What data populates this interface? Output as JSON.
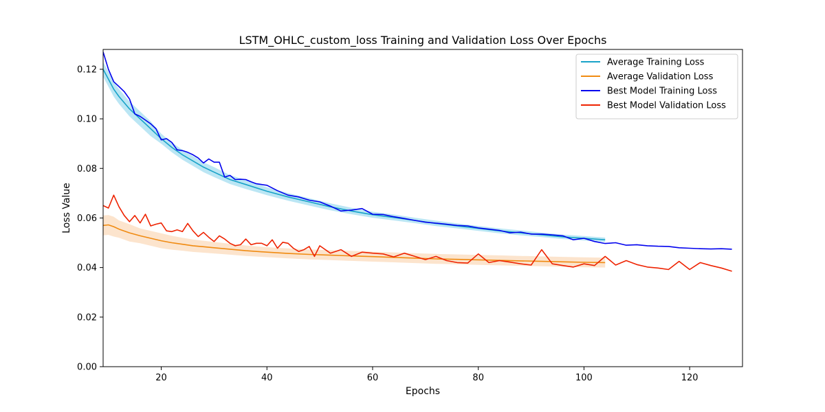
{
  "chart_data": {
    "type": "line",
    "title": "LSTM_OHLC_custom_loss  Training and Validation Loss Over Epochs",
    "xlabel": "Epochs",
    "ylabel": "Loss Value",
    "xlim": [
      9,
      130
    ],
    "ylim": [
      0,
      0.128
    ],
    "xticks": [
      20,
      40,
      60,
      80,
      100,
      120
    ],
    "yticks": [
      0.0,
      0.02,
      0.04,
      0.06,
      0.08,
      0.1,
      0.12
    ],
    "ytick_labels": [
      "0.00",
      "0.02",
      "0.04",
      "0.06",
      "0.08",
      "0.10",
      "0.12"
    ],
    "grid": false,
    "legend_position": "top-right",
    "series": [
      {
        "name": "Average Training Loss",
        "color": "#17a2c8",
        "band_color": "#9edcef",
        "x": [
          9,
          10,
          11,
          12,
          14,
          16,
          18,
          20,
          22,
          24,
          26,
          28,
          30,
          33,
          36,
          40,
          44,
          48,
          52,
          56,
          60,
          64,
          68,
          72,
          76,
          80,
          84,
          88,
          92,
          96,
          100,
          104
        ],
        "values": [
          0.12,
          0.116,
          0.112,
          0.109,
          0.104,
          0.1,
          0.096,
          0.092,
          0.0885,
          0.0855,
          0.083,
          0.0805,
          0.0785,
          0.0755,
          0.0735,
          0.0708,
          0.0685,
          0.0665,
          0.0645,
          0.0628,
          0.0613,
          0.0602,
          0.059,
          0.0578,
          0.0568,
          0.0558,
          0.0548,
          0.054,
          0.0532,
          0.0524,
          0.0518,
          0.0512
        ],
        "band_halfwidth": [
          0.003,
          0.003,
          0.003,
          0.003,
          0.003,
          0.003,
          0.003,
          0.002,
          0.002,
          0.002,
          0.002,
          0.002,
          0.002,
          0.0018,
          0.0018,
          0.0016,
          0.0015,
          0.0015,
          0.0014,
          0.0013,
          0.0012,
          0.0012,
          0.0011,
          0.0011,
          0.001,
          0.001,
          0.001,
          0.001,
          0.0009,
          0.0009,
          0.0009,
          0.0009
        ]
      },
      {
        "name": "Average Validation Loss",
        "color": "#f08a10",
        "band_color": "#fbd9b8",
        "x": [
          9,
          10,
          11,
          12,
          14,
          16,
          18,
          20,
          22,
          24,
          26,
          28,
          30,
          33,
          36,
          40,
          44,
          48,
          52,
          56,
          60,
          64,
          68,
          72,
          76,
          80,
          84,
          88,
          92,
          96,
          100,
          104
        ],
        "values": [
          0.057,
          0.0572,
          0.0565,
          0.0555,
          0.054,
          0.0528,
          0.0518,
          0.0508,
          0.05,
          0.0494,
          0.0488,
          0.0484,
          0.048,
          0.0474,
          0.0468,
          0.0462,
          0.0457,
          0.0453,
          0.045,
          0.0447,
          0.0444,
          0.0441,
          0.0438,
          0.0435,
          0.0433,
          0.0431,
          0.0429,
          0.0427,
          0.0425,
          0.0423,
          0.0421,
          0.042
        ],
        "band_halfwidth": [
          0.004,
          0.004,
          0.004,
          0.0035,
          0.0035,
          0.003,
          0.003,
          0.003,
          0.0028,
          0.0026,
          0.0025,
          0.0024,
          0.0023,
          0.0022,
          0.0021,
          0.002,
          0.002,
          0.002,
          0.002,
          0.002,
          0.002,
          0.002,
          0.002,
          0.002,
          0.002,
          0.002,
          0.002,
          0.002,
          0.002,
          0.002,
          0.002,
          0.002
        ]
      },
      {
        "name": "Best Model Training Loss",
        "color": "#0000ee",
        "x": [
          9,
          10,
          11,
          12,
          13,
          14,
          15,
          16,
          17,
          18,
          19,
          20,
          21,
          22,
          23,
          24,
          25,
          26,
          27,
          28,
          29,
          30,
          31,
          32,
          33,
          34,
          35,
          36,
          37,
          38,
          39,
          40,
          42,
          44,
          46,
          48,
          50,
          52,
          54,
          56,
          58,
          60,
          62,
          64,
          66,
          68,
          70,
          72,
          74,
          76,
          78,
          80,
          82,
          84,
          86,
          88,
          90,
          92,
          94,
          96,
          98,
          100,
          102,
          104,
          106,
          108,
          110,
          112,
          114,
          116,
          118,
          120,
          122,
          124,
          126,
          128
        ],
        "values": [
          0.127,
          0.12,
          0.115,
          0.113,
          0.111,
          0.108,
          0.102,
          0.101,
          0.0995,
          0.098,
          0.096,
          0.0915,
          0.092,
          0.0905,
          0.0875,
          0.0872,
          0.0865,
          0.0855,
          0.0842,
          0.0822,
          0.0838,
          0.0825,
          0.0825,
          0.0765,
          0.0772,
          0.0755,
          0.0756,
          0.0755,
          0.0746,
          0.0738,
          0.0735,
          0.0732,
          0.071,
          0.0692,
          0.0685,
          0.0672,
          0.0665,
          0.0648,
          0.0628,
          0.0632,
          0.0638,
          0.0615,
          0.0614,
          0.0605,
          0.0598,
          0.059,
          0.0583,
          0.0579,
          0.0575,
          0.057,
          0.0568,
          0.056,
          0.0555,
          0.055,
          0.054,
          0.0543,
          0.0535,
          0.0535,
          0.0532,
          0.0528,
          0.0512,
          0.0518,
          0.0505,
          0.0497,
          0.05,
          0.049,
          0.0492,
          0.0488,
          0.0486,
          0.0485,
          0.048,
          0.0478,
          0.0476,
          0.0475,
          0.0476,
          0.0474
        ]
      },
      {
        "name": "Best Model Validation Loss",
        "color": "#ee2200",
        "x": [
          9,
          10,
          11,
          12,
          13,
          14,
          15,
          16,
          17,
          18,
          19,
          20,
          21,
          22,
          23,
          24,
          25,
          26,
          27,
          28,
          29,
          30,
          31,
          32,
          33,
          34,
          35,
          36,
          37,
          38,
          39,
          40,
          41,
          42,
          43,
          44,
          45,
          46,
          47,
          48,
          49,
          50,
          52,
          54,
          56,
          58,
          60,
          62,
          64,
          66,
          68,
          70,
          72,
          74,
          76,
          78,
          80,
          82,
          84,
          86,
          88,
          90,
          92,
          94,
          96,
          98,
          100,
          102,
          104,
          106,
          108,
          110,
          112,
          114,
          116,
          118,
          120,
          122,
          124,
          126,
          128
        ],
        "values": [
          0.065,
          0.064,
          0.0692,
          0.0645,
          0.061,
          0.0585,
          0.061,
          0.058,
          0.0615,
          0.0568,
          0.0575,
          0.058,
          0.0548,
          0.0545,
          0.0552,
          0.0545,
          0.0578,
          0.0548,
          0.0525,
          0.0542,
          0.0522,
          0.0505,
          0.0528,
          0.0515,
          0.0498,
          0.0488,
          0.0492,
          0.0515,
          0.0492,
          0.0498,
          0.0498,
          0.0488,
          0.0512,
          0.0478,
          0.0502,
          0.0498,
          0.0478,
          0.0465,
          0.0472,
          0.0485,
          0.0445,
          0.0488,
          0.0458,
          0.0472,
          0.0445,
          0.0462,
          0.0458,
          0.0455,
          0.0443,
          0.0458,
          0.0445,
          0.0432,
          0.0445,
          0.0428,
          0.042,
          0.0418,
          0.0455,
          0.042,
          0.0428,
          0.0422,
          0.0415,
          0.041,
          0.0472,
          0.0415,
          0.0408,
          0.0402,
          0.0415,
          0.0408,
          0.0445,
          0.041,
          0.0428,
          0.0412,
          0.0402,
          0.0398,
          0.0392,
          0.0425,
          0.0392,
          0.042,
          0.0408,
          0.0398,
          0.0385
        ]
      }
    ]
  }
}
